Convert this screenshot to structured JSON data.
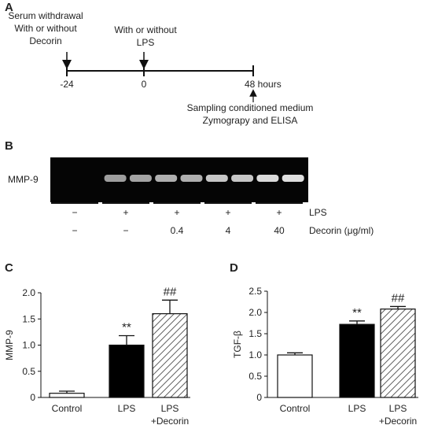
{
  "panel_a": {
    "label": "A",
    "events": [
      {
        "text": "Serum withdrawal\nWith or without\nDecorin",
        "time": "-24"
      },
      {
        "text": "With or without\nLPS",
        "time": "0"
      },
      {
        "text": "Sampling conditioned medium\nZymograpy and ELISA",
        "time": "48 hours"
      }
    ]
  },
  "panel_b": {
    "label": "B",
    "band_label": "MMP-9",
    "rows": [
      {
        "name": "LPS",
        "cells": [
          "−",
          "+",
          "+",
          "+",
          "+"
        ]
      },
      {
        "name": "Decorin (μg/ml)",
        "cells": [
          "−",
          "−",
          "0.4",
          "4",
          "40"
        ]
      }
    ]
  },
  "chart_data": [
    {
      "type": "bar",
      "label": "C",
      "ylabel": "MMP-9",
      "categories": [
        "Control",
        "LPS",
        "LPS\n+Decorin"
      ],
      "values": [
        0.08,
        1.0,
        1.6
      ],
      "errors": [
        0.04,
        0.18,
        0.26
      ],
      "fills": [
        "white",
        "black",
        "hatched"
      ],
      "annotations": [
        null,
        "**",
        "##"
      ],
      "ylim": [
        0,
        2.0
      ],
      "yticks": [
        0,
        0.5,
        {
          "value": 1,
          "label": "1.0"
        },
        1.5,
        {
          "value": 2,
          "label": "2.0"
        }
      ]
    },
    {
      "type": "bar",
      "label": "D",
      "ylabel": "TGF-β",
      "categories": [
        "Control",
        "LPS",
        "LPS\n+Decorin"
      ],
      "values": [
        1.0,
        1.72,
        2.08
      ],
      "errors": [
        0.05,
        0.08,
        0.06
      ],
      "fills": [
        "white",
        "black",
        "hatched"
      ],
      "annotations": [
        null,
        "**",
        "##"
      ],
      "ylim": [
        0,
        2.5
      ],
      "yticks": [
        0,
        0.5,
        {
          "value": 1,
          "label": "1.0"
        },
        1.5,
        {
          "value": 2,
          "label": "2.0"
        },
        2.5
      ]
    }
  ]
}
